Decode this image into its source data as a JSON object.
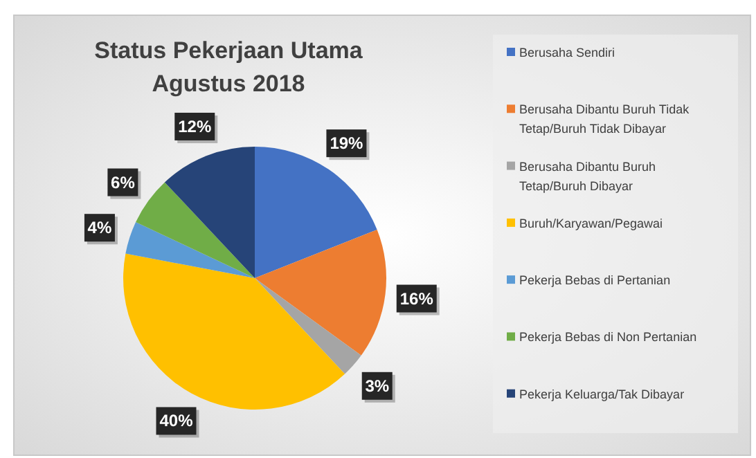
{
  "chart_data": {
    "type": "pie",
    "title": "Status Pekerjaan Utama\nAgustus 2018",
    "categories": [
      "Berusaha Sendiri",
      "Berusaha Dibantu Buruh Tidak Tetap/Buruh Tidak Dibayar",
      "Berusaha Dibantu Buruh Tetap/Buruh Dibayar",
      "Buruh/Karyawan/Pegawai",
      "Pekerja Bebas di Pertanian",
      "Pekerja Bebas di Non Pertanian",
      "Pekerja Keluarga/Tak Dibayar"
    ],
    "values": [
      19,
      16,
      3,
      40,
      4,
      6,
      12
    ],
    "colors": [
      "#4472c4",
      "#ed7d31",
      "#a5a5a5",
      "#ffc000",
      "#5b9bd5",
      "#70ad47",
      "#264478"
    ],
    "value_labels": [
      "19%",
      "16%",
      "3%",
      "40%",
      "4%",
      "6%",
      "12%"
    ],
    "legend": "right"
  }
}
